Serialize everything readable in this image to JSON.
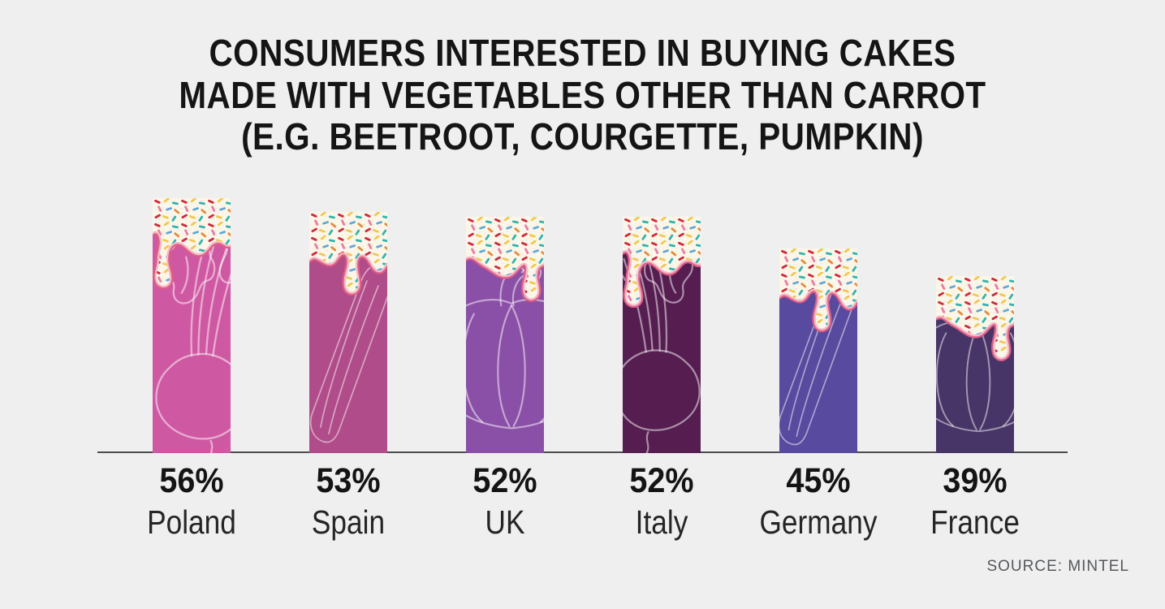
{
  "title": {
    "line1": "CONSUMERS INTERESTED IN BUYING CAKES",
    "line2": "MADE WITH VEGETABLES OTHER THAN CARROT",
    "line3": "(E.G. BEETROOT, COURGETTE, PUMPKIN)"
  },
  "colors": {
    "background": "#efeff0",
    "title_text": "#151515",
    "axis_line": "#4c4c4e",
    "frosting_cream": "#fcf6e9",
    "drip_edge_outer": "#e25d85",
    "drip_edge_inner": "#f6bac7",
    "source_text": "#55585c",
    "sprinkle_colors": [
      "#d7263d",
      "#f3c84b",
      "#2fb5ae",
      "#ef7ba2",
      "#5fa8d8",
      "#e98a3c"
    ]
  },
  "chart_data": {
    "type": "bar",
    "title": "CONSUMERS INTERESTED IN BUYING CAKES MADE WITH VEGETABLES OTHER THAN CARROT (E.G. BEETROOT, COURGETTE, PUMPKIN)",
    "unit": "%",
    "ylim": [
      0,
      60
    ],
    "grid": false,
    "legend": false,
    "categories": [
      "Poland",
      "Spain",
      "UK",
      "Italy",
      "Germany",
      "France"
    ],
    "values": [
      56,
      53,
      52,
      52,
      45,
      39
    ],
    "bars": [
      {
        "country": "Poland",
        "value": 56,
        "label": "56%",
        "color": "#cf58a2",
        "vegetable": "beetroot"
      },
      {
        "country": "Spain",
        "value": 53,
        "label": "53%",
        "color": "#b04c89",
        "vegetable": "courgette"
      },
      {
        "country": "UK",
        "value": 52,
        "label": "52%",
        "color": "#8a4fa6",
        "vegetable": "pumpkin"
      },
      {
        "country": "Italy",
        "value": 52,
        "label": "52%",
        "color": "#551d50",
        "vegetable": "beetroot"
      },
      {
        "country": "Germany",
        "value": 45,
        "label": "45%",
        "color": "#574a9f",
        "vegetable": "courgette"
      },
      {
        "country": "France",
        "value": 39,
        "label": "39%",
        "color": "#473567",
        "vegetable": "pumpkin"
      }
    ],
    "source": "SOURCE: MINTEL"
  }
}
